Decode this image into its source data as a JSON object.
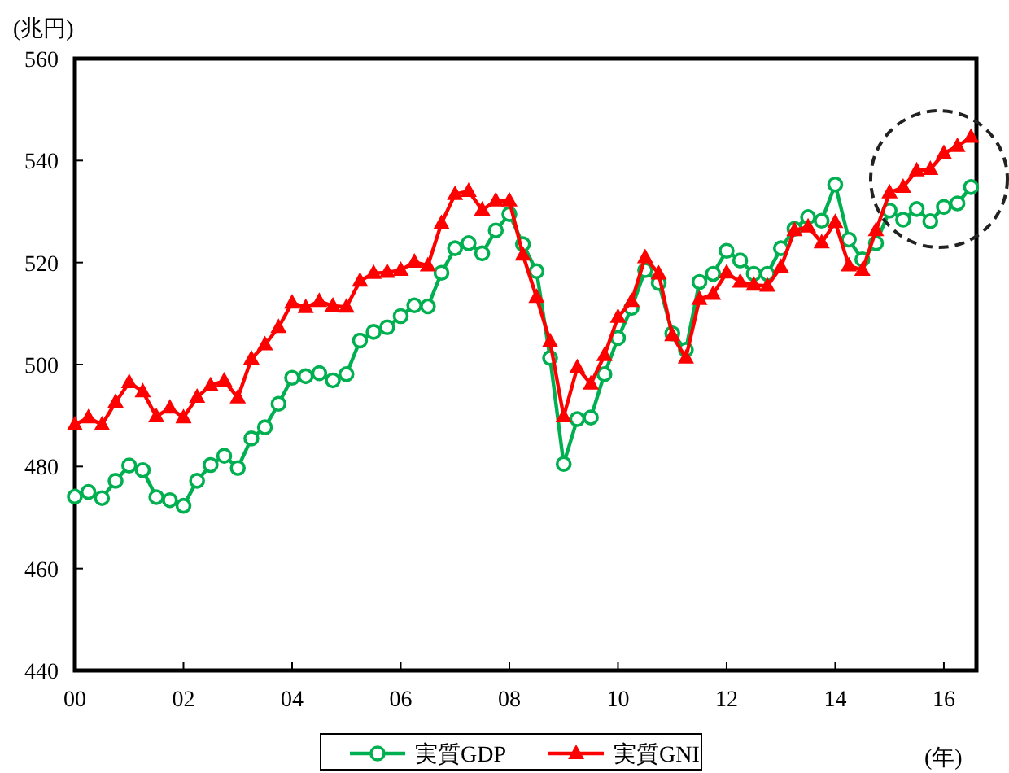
{
  "chart_data": {
    "type": "line",
    "ylabel": "(兆円)",
    "xlabel": "(年)",
    "x": [
      0,
      0.25,
      0.5,
      0.75,
      1,
      1.25,
      1.5,
      1.75,
      2,
      2.25,
      2.5,
      2.75,
      3,
      3.25,
      3.5,
      3.75,
      4,
      4.25,
      4.5,
      4.75,
      5,
      5.25,
      5.5,
      5.75,
      6,
      6.25,
      6.5,
      6.75,
      7,
      7.25,
      7.5,
      7.75,
      8,
      8.25,
      8.5,
      8.75,
      9,
      9.25,
      9.5,
      9.75,
      10,
      10.25,
      10.5,
      10.75,
      11,
      11.25,
      11.5,
      11.75,
      12,
      12.25,
      12.5,
      12.75,
      13,
      13.25,
      13.5,
      13.75,
      14,
      14.25,
      14.5,
      14.75,
      15,
      15.25,
      15.5,
      15.75,
      16,
      16.25,
      16.5
    ],
    "series": [
      {
        "name": "実質GDP",
        "color": "#00b050",
        "marker": "circle",
        "values": [
          474.1,
          475.0,
          473.8,
          477.2,
          480.2,
          479.3,
          474.0,
          473.4,
          472.3,
          477.2,
          480.3,
          482.1,
          479.7,
          485.5,
          487.7,
          492.3,
          497.4,
          497.7,
          498.3,
          496.9,
          498.1,
          504.7,
          506.4,
          507.3,
          509.5,
          511.6,
          511.4,
          518.0,
          522.8,
          523.8,
          521.8,
          526.3,
          529.5,
          523.6,
          518.3,
          501.3,
          480.5,
          489.3,
          489.6,
          498.1,
          505.2,
          511.1,
          518.5,
          516.0,
          506.1,
          502.9,
          516.2,
          517.8,
          522.3,
          520.4,
          517.8,
          517.8,
          522.8,
          526.6,
          528.9,
          528.2,
          535.3,
          524.5,
          520.6,
          523.8,
          530.2,
          528.4,
          530.5,
          528.1,
          530.9,
          531.6,
          534.8
        ]
      },
      {
        "name": "実質GNI",
        "color": "#ff0000",
        "marker": "triangle",
        "values": [
          488.2,
          489.6,
          488.2,
          492.6,
          496.5,
          494.7,
          489.8,
          491.5,
          489.6,
          493.6,
          495.9,
          496.8,
          493.5,
          501.1,
          503.9,
          507.3,
          512.1,
          511.2,
          512.4,
          511.5,
          511.3,
          516.4,
          517.9,
          518.1,
          518.5,
          520.1,
          519.4,
          527.7,
          533.4,
          534.0,
          530.3,
          532.1,
          532.1,
          521.5,
          513.2,
          504.5,
          489.8,
          499.4,
          496.2,
          501.8,
          509.3,
          512.4,
          521.0,
          517.8,
          505.7,
          501.3,
          512.8,
          513.8,
          518.0,
          516.2,
          515.6,
          515.4,
          519.1,
          526.3,
          527.0,
          523.9,
          527.9,
          519.4,
          518.5,
          526.3,
          533.7,
          534.8,
          538.0,
          538.3,
          541.4,
          542.8,
          544.6
        ]
      }
    ],
    "xlim": [
      0,
      16.6
    ],
    "xticks": [
      {
        "value": 0,
        "label": "00"
      },
      {
        "value": 2,
        "label": "02"
      },
      {
        "value": 4,
        "label": "04"
      },
      {
        "value": 6,
        "label": "06"
      },
      {
        "value": 8,
        "label": "08"
      },
      {
        "value": 10,
        "label": "10"
      },
      {
        "value": 12,
        "label": "12"
      },
      {
        "value": 14,
        "label": "14"
      },
      {
        "value": 16,
        "label": "16"
      }
    ],
    "ylim": [
      440,
      560
    ],
    "yticks": [
      440,
      460,
      480,
      500,
      520,
      540,
      560
    ],
    "grid": false,
    "legend": "bottom"
  }
}
